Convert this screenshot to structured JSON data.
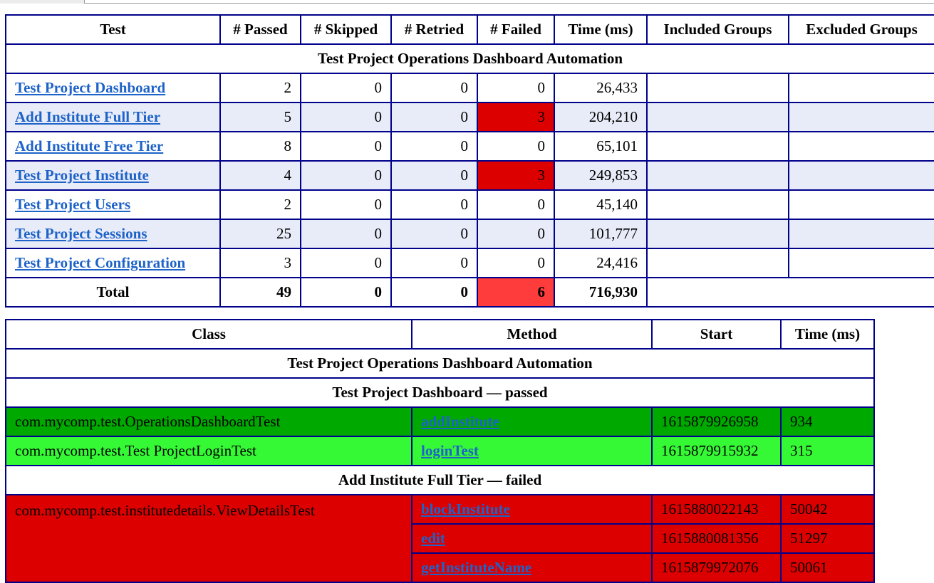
{
  "summary": {
    "headers": [
      "Test",
      "# Passed",
      "# Skipped",
      "# Retried",
      "# Failed",
      "Time (ms)",
      "Included Groups",
      "Excluded Groups"
    ],
    "suite": "Test Project Operations Dashboard Automation",
    "rows": [
      {
        "name": "Test Project Dashboard",
        "passed": "2",
        "skipped": "0",
        "retried": "0",
        "failed": "0",
        "time": "26,433"
      },
      {
        "name": "Add Institute Full Tier",
        "passed": "5",
        "skipped": "0",
        "retried": "0",
        "failed": "3",
        "time": "204,210"
      },
      {
        "name": "Add Institute Free Tier",
        "passed": "8",
        "skipped": "0",
        "retried": "0",
        "failed": "0",
        "time": "65,101"
      },
      {
        "name": "Test Project Institute",
        "passed": "4",
        "skipped": "0",
        "retried": "0",
        "failed": "3",
        "time": "249,853"
      },
      {
        "name": "Test Project Users",
        "passed": "2",
        "skipped": "0",
        "retried": "0",
        "failed": "0",
        "time": "45,140"
      },
      {
        "name": "Test Project Sessions",
        "passed": "25",
        "skipped": "0",
        "retried": "0",
        "failed": "0",
        "time": "101,777"
      },
      {
        "name": "Test Project Configuration",
        "passed": "3",
        "skipped": "0",
        "retried": "0",
        "failed": "0",
        "time": "24,416"
      }
    ],
    "total": {
      "label": "Total",
      "passed": "49",
      "skipped": "0",
      "retried": "0",
      "failed": "6",
      "time": "716,930"
    }
  },
  "detail": {
    "headers": [
      "Class",
      "Method",
      "Start",
      "Time (ms)"
    ],
    "suite": "Test Project Operations Dashboard Automation",
    "group1": {
      "title": "Test Project Dashboard — passed",
      "rows": [
        {
          "class": "com.mycomp.test.OperationsDashboardTest",
          "method": "addInstitute",
          "start": "1615879926958",
          "time": "934"
        },
        {
          "class": "com.mycomp.test.Test ProjectLoginTest",
          "method": "loginTest",
          "start": "1615879915932",
          "time": "315"
        }
      ]
    },
    "group2": {
      "title": "Add Institute Full Tier — failed",
      "class": "com.mycomp.test.institutedetails.ViewDetailsTest",
      "rows": [
        {
          "method": "blockInstitute",
          "start": "1615880022143",
          "time": "50042"
        },
        {
          "method": "edit",
          "start": "1615880081356",
          "time": "51297"
        },
        {
          "method": "getInstituteName",
          "start": "1615879972076",
          "time": "50061"
        }
      ]
    }
  },
  "colors": {
    "border": "#00008b",
    "link": "#1e63c8",
    "stripe": "#e8ecf8",
    "failed_cell": "#dd0000",
    "failed_total": "#ff3c3c",
    "pass_dark": "#00a900",
    "pass_light": "#36f936",
    "fail_row": "#dd0000"
  }
}
